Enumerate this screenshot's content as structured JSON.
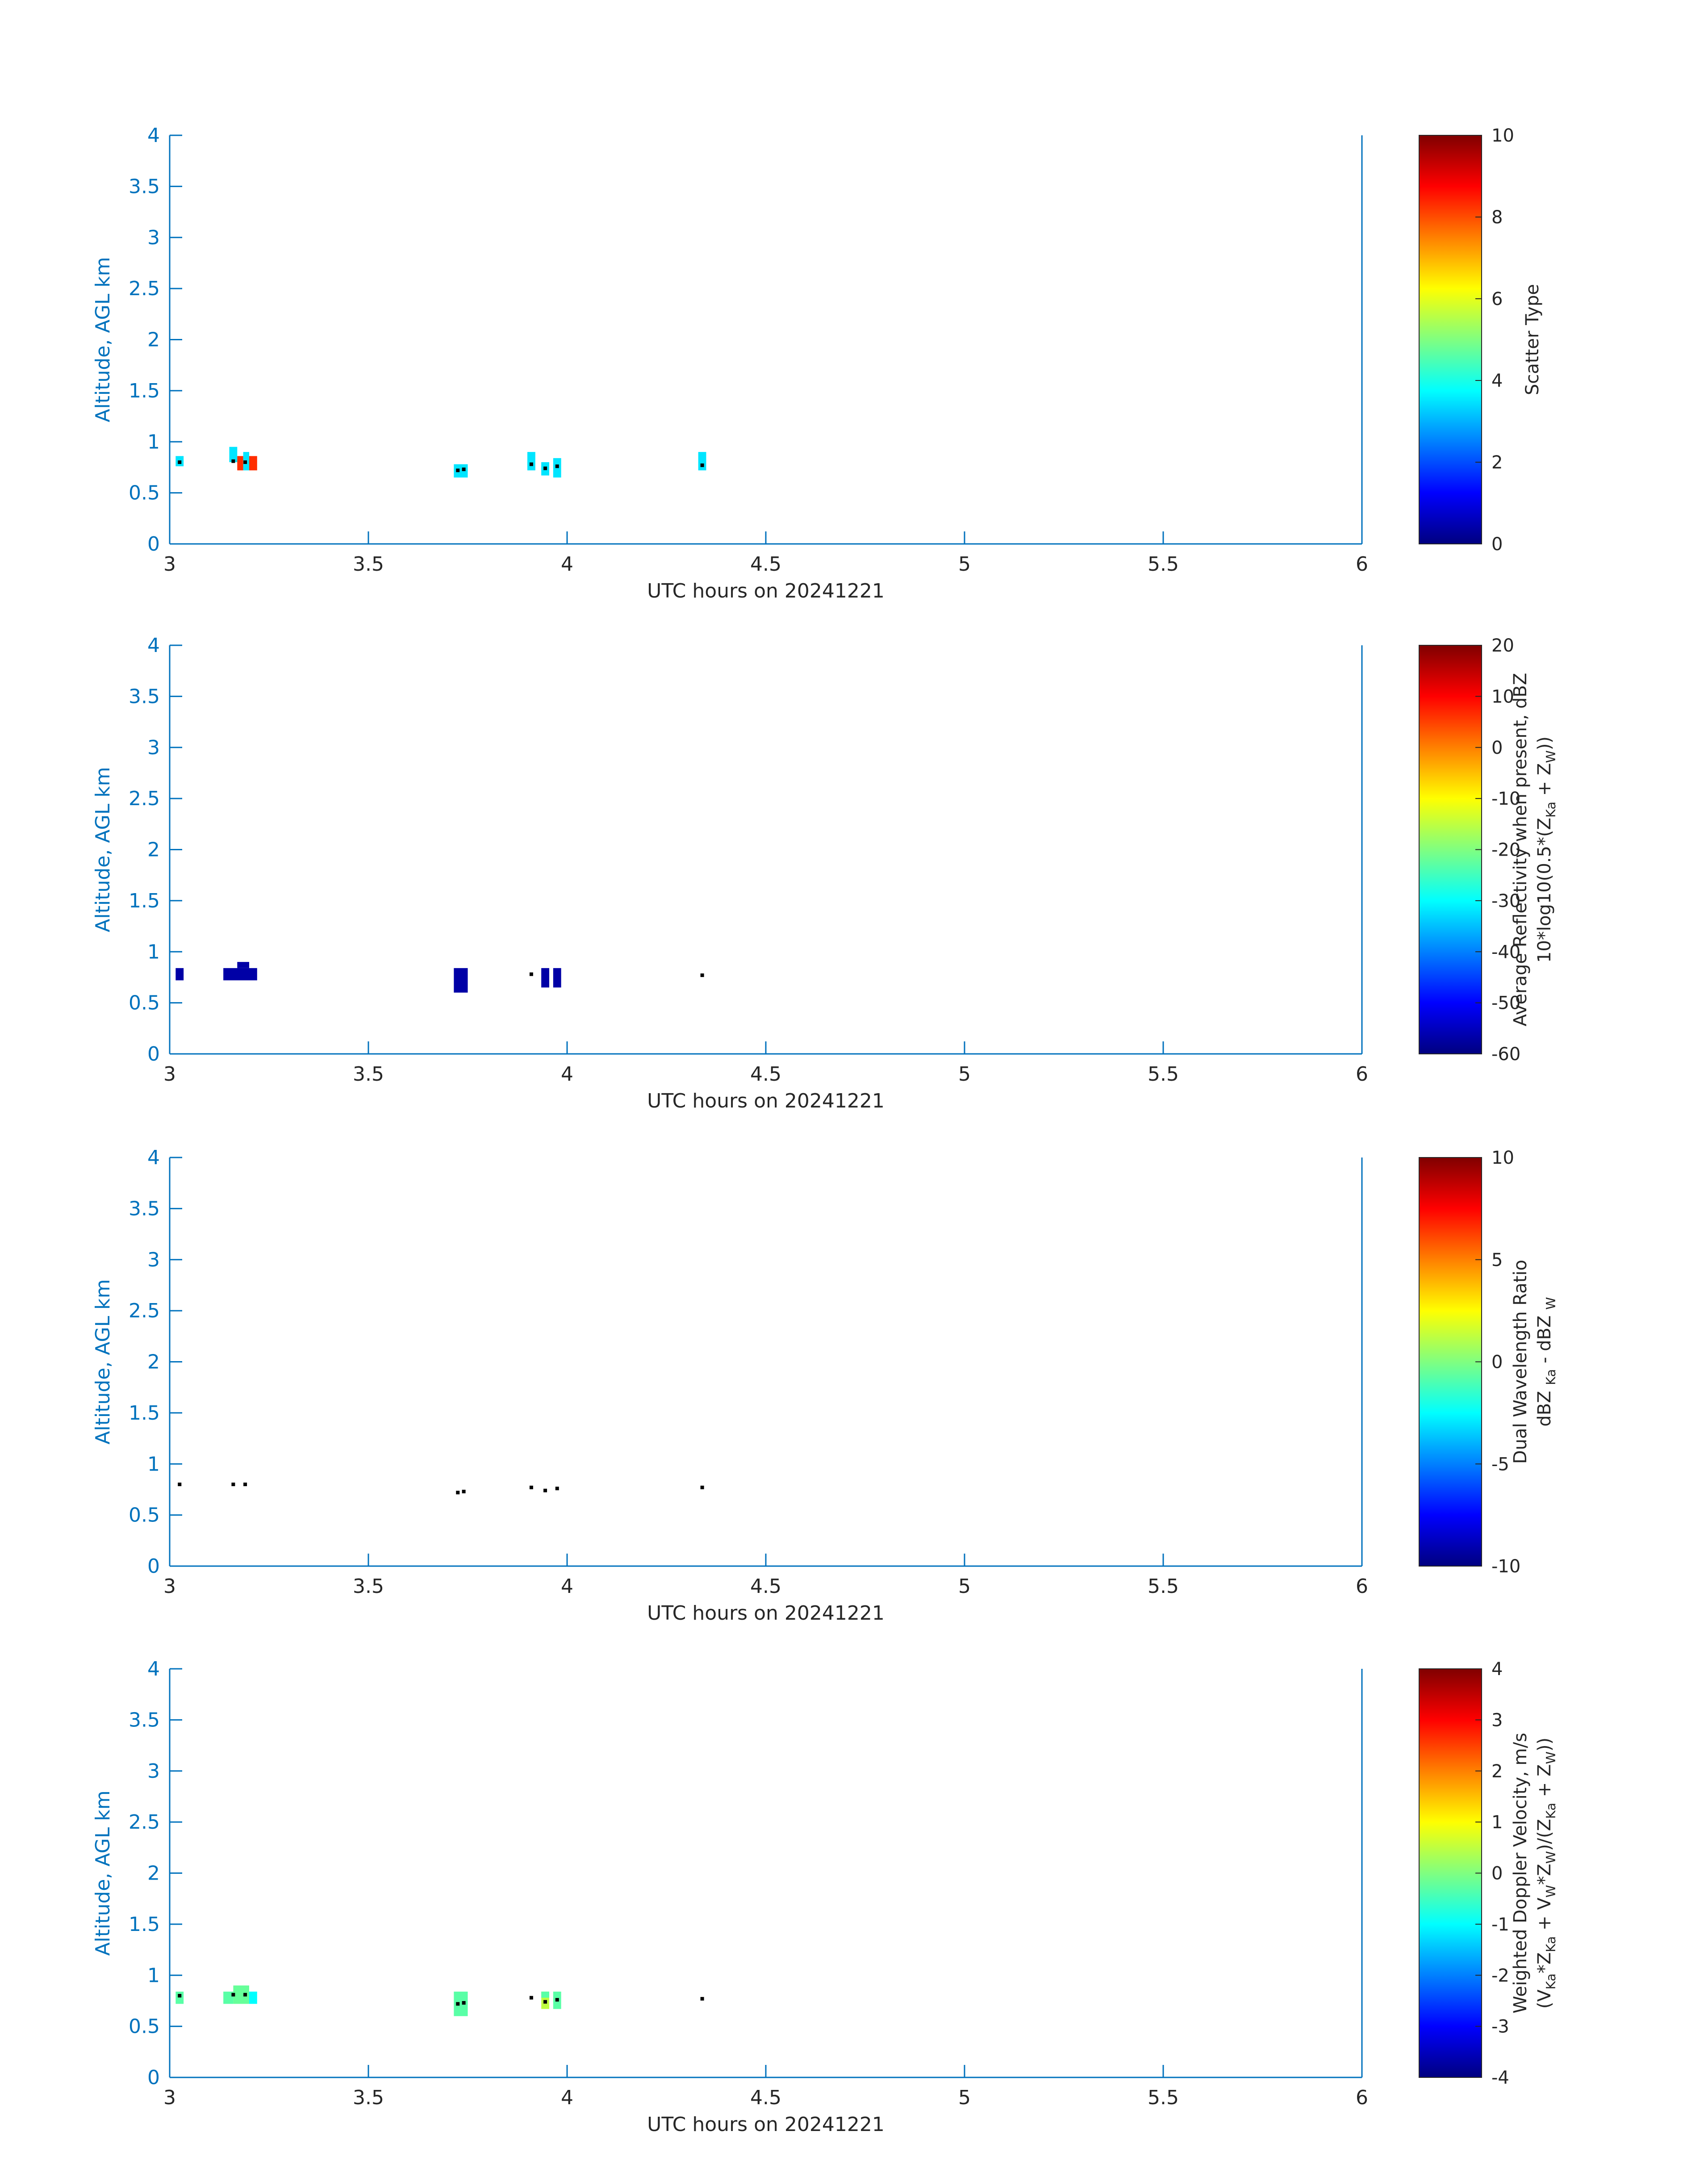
{
  "chart_data": [
    {
      "type": "heatmap",
      "xlabel": "UTC hours on 20241221",
      "ylabel": "Altitude, AGL km",
      "xlim": [
        3,
        6
      ],
      "ylim": [
        0,
        4
      ],
      "xticks": [
        "3",
        "3.5",
        "4",
        "4.5",
        "5",
        "5.5",
        "6"
      ],
      "yticks": [
        "0",
        "0.5",
        "1",
        "1.5",
        "2",
        "2.5",
        "3",
        "3.5",
        "4"
      ],
      "colorbar": {
        "label_lines": [
          "Scatter Type"
        ],
        "range": [
          0,
          10
        ],
        "ticks": [
          "0",
          "2",
          "4",
          "6",
          "8",
          "10"
        ]
      },
      "cells": [
        {
          "x0": 3.015,
          "x1": 3.035,
          "y0": 0.76,
          "y1": 0.86,
          "value": 3.5
        },
        {
          "x0": 3.15,
          "x1": 3.17,
          "y0": 0.8,
          "y1": 0.95,
          "value": 3.5
        },
        {
          "x0": 3.17,
          "x1": 3.185,
          "y0": 0.72,
          "y1": 0.86,
          "value": 8.3
        },
        {
          "x0": 3.185,
          "x1": 3.2,
          "y0": 0.8,
          "y1": 0.9,
          "value": 3.5
        },
        {
          "x0": 3.185,
          "x1": 3.2,
          "y0": 0.72,
          "y1": 0.8,
          "value": 3.5
        },
        {
          "x0": 3.2,
          "x1": 3.22,
          "y0": 0.72,
          "y1": 0.86,
          "value": 8.3
        },
        {
          "x0": 3.715,
          "x1": 3.75,
          "y0": 0.65,
          "y1": 0.78,
          "value": 3.5
        },
        {
          "x0": 3.9,
          "x1": 3.92,
          "y0": 0.72,
          "y1": 0.9,
          "value": 3.5
        },
        {
          "x0": 3.935,
          "x1": 3.955,
          "y0": 0.67,
          "y1": 0.8,
          "value": 3.5
        },
        {
          "x0": 3.965,
          "x1": 3.985,
          "y0": 0.65,
          "y1": 0.84,
          "value": 3.5
        },
        {
          "x0": 4.33,
          "x1": 4.35,
          "y0": 0.72,
          "y1": 0.9,
          "value": 3.5
        }
      ],
      "points": [
        {
          "x": 3.025,
          "y": 0.8
        },
        {
          "x": 3.16,
          "y": 0.81
        },
        {
          "x": 3.19,
          "y": 0.8
        },
        {
          "x": 3.725,
          "y": 0.72
        },
        {
          "x": 3.74,
          "y": 0.73
        },
        {
          "x": 3.91,
          "y": 0.78
        },
        {
          "x": 3.945,
          "y": 0.74
        },
        {
          "x": 3.975,
          "y": 0.76
        },
        {
          "x": 4.34,
          "y": 0.77
        }
      ]
    },
    {
      "type": "heatmap",
      "xlabel": "UTC hours on 20241221",
      "ylabel": "Altitude, AGL km",
      "xlim": [
        3,
        6
      ],
      "ylim": [
        0,
        4
      ],
      "xticks": [
        "3",
        "3.5",
        "4",
        "4.5",
        "5",
        "5.5",
        "6"
      ],
      "yticks": [
        "0",
        "0.5",
        "1",
        "1.5",
        "2",
        "2.5",
        "3",
        "3.5",
        "4"
      ],
      "colorbar": {
        "label_lines": [
          "Average Reflectivity when present, dBZ",
          "10*log10(0.5*(Z_Ka + Z_W))"
        ],
        "range": [
          -60,
          20
        ],
        "ticks": [
          "-60",
          "-50",
          "-40",
          "-30",
          "-20",
          "-10",
          "0",
          "10",
          "20"
        ]
      },
      "cells": [
        {
          "x0": 3.015,
          "x1": 3.035,
          "y0": 0.72,
          "y1": 0.84,
          "value": -57
        },
        {
          "x0": 3.135,
          "x1": 3.22,
          "y0": 0.72,
          "y1": 0.84,
          "value": -57
        },
        {
          "x0": 3.17,
          "x1": 3.2,
          "y0": 0.84,
          "y1": 0.9,
          "value": -57
        },
        {
          "x0": 3.715,
          "x1": 3.75,
          "y0": 0.6,
          "y1": 0.84,
          "value": -57
        },
        {
          "x0": 3.935,
          "x1": 3.955,
          "y0": 0.65,
          "y1": 0.84,
          "value": -57
        },
        {
          "x0": 3.965,
          "x1": 3.985,
          "y0": 0.65,
          "y1": 0.84,
          "value": -57
        }
      ],
      "points": [
        {
          "x": 3.91,
          "y": 0.78
        },
        {
          "x": 4.34,
          "y": 0.77
        }
      ]
    },
    {
      "type": "heatmap",
      "xlabel": "UTC hours on 20241221",
      "ylabel": "Altitude, AGL km",
      "xlim": [
        3,
        6
      ],
      "ylim": [
        0,
        4
      ],
      "xticks": [
        "3",
        "3.5",
        "4",
        "4.5",
        "5",
        "5.5",
        "6"
      ],
      "yticks": [
        "0",
        "0.5",
        "1",
        "1.5",
        "2",
        "2.5",
        "3",
        "3.5",
        "4"
      ],
      "colorbar": {
        "label_lines": [
          "Dual Wavelength Ratio",
          "dBZ Ka - dBZ W"
        ],
        "range": [
          -10,
          10
        ],
        "ticks": [
          "-10",
          "-5",
          "0",
          "5",
          "10"
        ]
      },
      "cells": [],
      "points": [
        {
          "x": 3.025,
          "y": 0.8
        },
        {
          "x": 3.16,
          "y": 0.8
        },
        {
          "x": 3.19,
          "y": 0.8
        },
        {
          "x": 3.725,
          "y": 0.72
        },
        {
          "x": 3.74,
          "y": 0.73
        },
        {
          "x": 3.91,
          "y": 0.77
        },
        {
          "x": 3.945,
          "y": 0.74
        },
        {
          "x": 3.975,
          "y": 0.76
        },
        {
          "x": 4.34,
          "y": 0.77
        }
      ]
    },
    {
      "type": "heatmap",
      "xlabel": "UTC hours on 20241221",
      "ylabel": "Altitude, AGL km",
      "xlim": [
        3,
        6
      ],
      "ylim": [
        0,
        4
      ],
      "xticks": [
        "3",
        "3.5",
        "4",
        "4.5",
        "5",
        "5.5",
        "6"
      ],
      "yticks": [
        "0",
        "0.5",
        "1",
        "1.5",
        "2",
        "2.5",
        "3",
        "3.5",
        "4"
      ],
      "colorbar": {
        "label_lines": [
          "Weighted Doppler Velocity, m/s",
          "(V_Ka*Z_Ka + V_W*Z_W)/(Z_Ka + Z_W))"
        ],
        "range": [
          -4,
          4
        ],
        "ticks": [
          "-4",
          "-3",
          "-2",
          "-1",
          "0",
          "1",
          "2",
          "3",
          "4"
        ]
      },
      "cells": [
        {
          "x0": 3.015,
          "x1": 3.035,
          "y0": 0.72,
          "y1": 0.84,
          "value": -0.3
        },
        {
          "x0": 3.135,
          "x1": 3.16,
          "y0": 0.72,
          "y1": 0.84,
          "value": -0.3
        },
        {
          "x0": 3.16,
          "x1": 3.2,
          "y0": 0.72,
          "y1": 0.9,
          "value": -0.2
        },
        {
          "x0": 3.2,
          "x1": 3.22,
          "y0": 0.72,
          "y1": 0.84,
          "value": -1.0
        },
        {
          "x0": 3.715,
          "x1": 3.75,
          "y0": 0.6,
          "y1": 0.84,
          "value": -0.3
        },
        {
          "x0": 3.935,
          "x1": 3.955,
          "y0": 0.67,
          "y1": 0.84,
          "value": 0.5
        },
        {
          "x0": 3.935,
          "x1": 3.955,
          "y0": 0.78,
          "y1": 0.84,
          "value": -0.3
        },
        {
          "x0": 3.965,
          "x1": 3.985,
          "y0": 0.67,
          "y1": 0.84,
          "value": -0.3
        }
      ],
      "points": [
        {
          "x": 3.025,
          "y": 0.8
        },
        {
          "x": 3.16,
          "y": 0.81
        },
        {
          "x": 3.19,
          "y": 0.81
        },
        {
          "x": 3.725,
          "y": 0.72
        },
        {
          "x": 3.74,
          "y": 0.73
        },
        {
          "x": 3.91,
          "y": 0.78
        },
        {
          "x": 3.945,
          "y": 0.74
        },
        {
          "x": 3.975,
          "y": 0.76
        },
        {
          "x": 4.34,
          "y": 0.77
        }
      ]
    }
  ],
  "colors": {
    "axis": "#0072bd",
    "text": "#262626",
    "marker": "#000000",
    "colormap": "jet"
  }
}
